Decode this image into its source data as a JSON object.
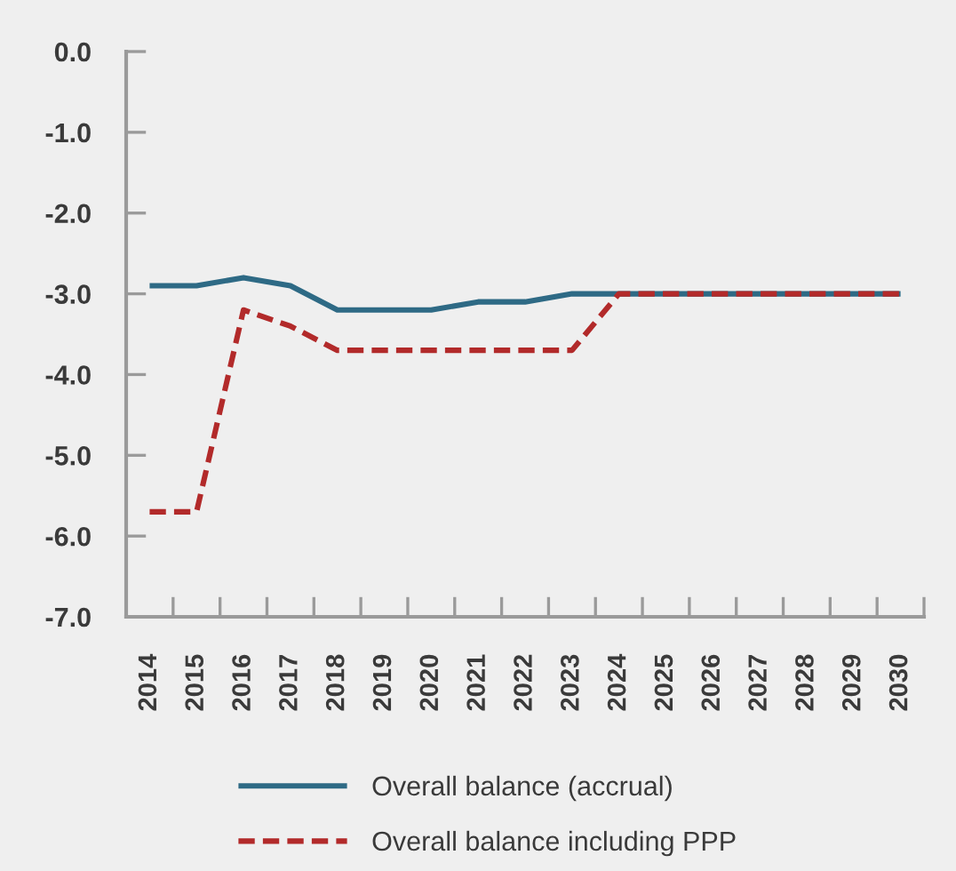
{
  "chart_data": {
    "type": "line",
    "categories": [
      "2014",
      "2015",
      "2016",
      "2017",
      "2018",
      "2019",
      "2020",
      "2021",
      "2022",
      "2023",
      "2024",
      "2025",
      "2026",
      "2027",
      "2028",
      "2029",
      "2030"
    ],
    "ylim": [
      -7,
      0
    ],
    "yticks": [
      {
        "value": 0,
        "label": "0.0"
      },
      {
        "value": -1,
        "label": "-1.0"
      },
      {
        "value": -2,
        "label": "-2.0"
      },
      {
        "value": -3,
        "label": "-3.0"
      },
      {
        "value": -4,
        "label": "-4.0"
      },
      {
        "value": -5,
        "label": "-5.0"
      },
      {
        "value": -6,
        "label": "-6.0"
      },
      {
        "value": -7,
        "label": "-7.0"
      }
    ],
    "grid": false,
    "legend": "bottom",
    "series": [
      {
        "name": "Overall balance (accrual)",
        "color": "#2e6a85",
        "line_style": "solid",
        "values": [
          -2.9,
          -2.9,
          -2.8,
          -2.9,
          -3.2,
          -3.2,
          -3.2,
          -3.1,
          -3.1,
          -3.0,
          -3.0,
          -3.0,
          -3.0,
          -3.0,
          -3.0,
          -3.0,
          -3.0
        ]
      },
      {
        "name": "Overall balance including PPP",
        "color": "#b22a2a",
        "line_style": "dashed",
        "values": [
          -5.7,
          -5.7,
          -3.2,
          -3.4,
          -3.7,
          -3.7,
          -3.7,
          -3.7,
          -3.7,
          -3.7,
          -3.0,
          -3.0,
          -3.0,
          -3.0,
          -3.0,
          -3.0,
          -3.0
        ]
      }
    ]
  }
}
